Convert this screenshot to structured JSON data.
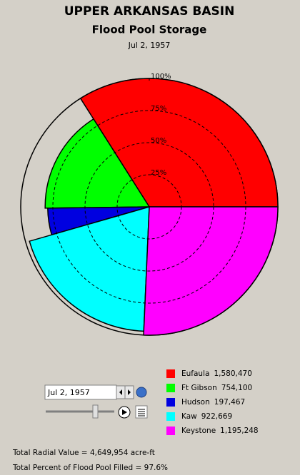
{
  "chart_data": {
    "type": "polar-area",
    "title": "UPPER ARKANSAS BASIN",
    "subtitle": "Flood Pool Storage",
    "date": "Jul 2, 1957",
    "categories": [
      "Eufaula",
      "Ft Gibson",
      "Hudson",
      "Kaw",
      "Keystone"
    ],
    "values": [
      1580470,
      754100,
      197467,
      922669,
      1195248
    ],
    "value_labels": [
      "1,580,470",
      "754,100",
      "197,467",
      "922,669",
      "1,195,248"
    ],
    "percent_full": [
      100,
      81,
      79,
      97,
      100
    ],
    "colors": [
      "#ff0000",
      "#00ff00",
      "#0000e0",
      "#00ffff",
      "#ff00ff"
    ],
    "rlim": [
      0,
      100
    ],
    "rticks": [
      {
        "value": 25,
        "label": "25%"
      },
      {
        "value": 50,
        "label": "50%"
      },
      {
        "value": 75,
        "label": "75%"
      },
      {
        "value": 100,
        "label": "100%"
      }
    ]
  },
  "controls": {
    "date_field": "Jul 2, 1957"
  },
  "summary": {
    "total_radial": "Total Radial Value =  4,649,954 acre-ft",
    "total_percent": "Total Percent of Flood Pool Filled =  97.6%"
  }
}
